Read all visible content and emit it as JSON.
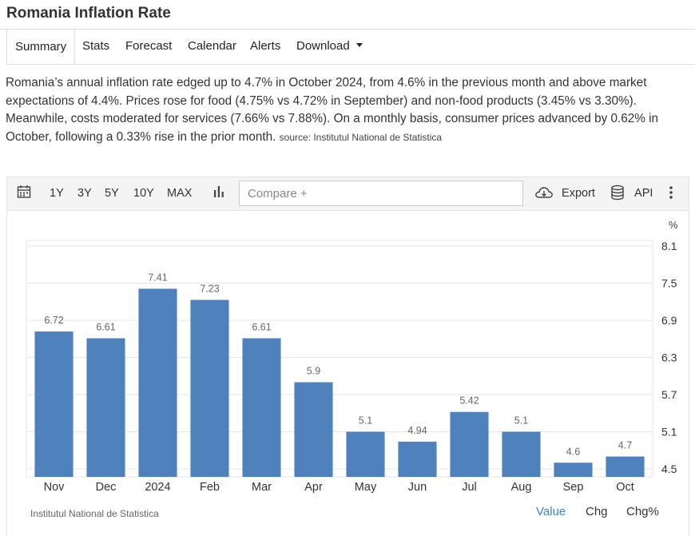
{
  "page": {
    "title": "Romania Inflation Rate"
  },
  "tabs": [
    {
      "label": "Summary"
    },
    {
      "label": "Stats"
    },
    {
      "label": "Forecast"
    },
    {
      "label": "Calendar"
    },
    {
      "label": "Alerts"
    },
    {
      "label": "Download"
    }
  ],
  "summary": {
    "text": "Romania’s annual inflation rate edged up to 4.7% in October 2024, from 4.6% in the previous month and above market expectations of 4.4%. Prices rose for food (4.75% vs 4.72% in September) and non-food products (3.45% vs 3.30%). Meanwhile, costs moderated for services (7.66% vs 7.88%). On a monthly basis, consumer prices advanced by 0.62% in October, following a 0.33% rise in the prior month.",
    "source": "source: Institutul National de Statistica"
  },
  "toolbar": {
    "ranges": [
      "1Y",
      "3Y",
      "5Y",
      "10Y",
      "MAX"
    ],
    "compare_placeholder": "Compare +",
    "export_label": "Export",
    "api_label": "API",
    "icons": [
      "calendar-icon",
      "bar-chart-icon",
      "cloud-download-icon",
      "database-icon",
      "more-vertical-icon"
    ]
  },
  "chart_data": {
    "type": "bar",
    "categories": [
      "Nov",
      "Dec",
      "2024",
      "Feb",
      "Mar",
      "Apr",
      "May",
      "Jun",
      "Jul",
      "Aug",
      "Sep",
      "Oct"
    ],
    "values": [
      6.72,
      6.61,
      7.41,
      7.23,
      6.61,
      5.9,
      5.1,
      4.94,
      5.42,
      5.1,
      4.6,
      4.7
    ],
    "value_labels": [
      "6.72",
      "6.61",
      "7.41",
      "7.23",
      "6.61",
      "5.9",
      "5.1",
      "4.94",
      "5.42",
      "5.1",
      "4.6",
      "4.7"
    ],
    "y_ticks": [
      "8.1",
      "7.5",
      "6.9",
      "6.3",
      "5.7",
      "5.1",
      "4.5"
    ],
    "y_tick_values": [
      8.1,
      7.5,
      6.9,
      6.3,
      5.7,
      5.1,
      4.5
    ],
    "ylim": [
      4.5,
      8.1
    ],
    "y_unit": "%",
    "grid": true,
    "bar_color": "#4f81bd",
    "source": "Institutul National de Statistica"
  },
  "footer": {
    "modes": [
      "Value",
      "Chg",
      "Chg%"
    ],
    "active_mode": "Value",
    "active_color": "#3a87c4"
  }
}
